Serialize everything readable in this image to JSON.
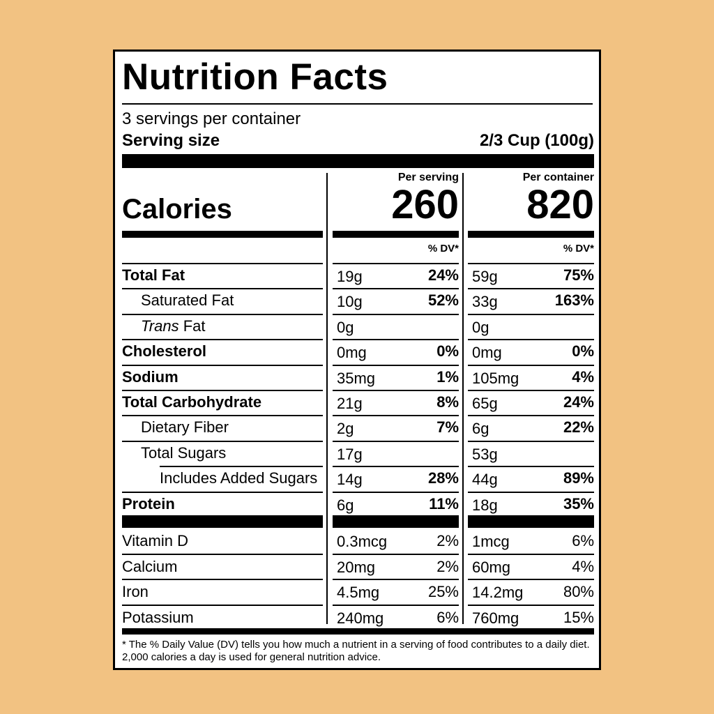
{
  "title": "Nutrition Facts",
  "servings_per_container": "3 servings per container",
  "serving_size_label": "Serving size",
  "serving_size_value": "2/3 Cup (100g)",
  "calories_label": "Calories",
  "per_serving_label": "Per serving",
  "per_container_label": "Per container",
  "calories_per_serving": "260",
  "calories_per_container": "820",
  "dv_header": "% DV*",
  "nutrients": [
    {
      "name": "Total Fat",
      "serving_amt": "19g",
      "serving_dv": "24%",
      "container_amt": "59g",
      "container_dv": "75%"
    },
    {
      "name": "Saturated Fat",
      "serving_amt": "10g",
      "serving_dv": "52%",
      "container_amt": "33g",
      "container_dv": "163%"
    },
    {
      "name_italic": "Trans",
      "name": "Fat",
      "serving_amt": "0g",
      "serving_dv": "",
      "container_amt": "0g",
      "container_dv": ""
    },
    {
      "name": "Cholesterol",
      "serving_amt": "0mg",
      "serving_dv": "0%",
      "container_amt": "0mg",
      "container_dv": "0%"
    },
    {
      "name": "Sodium",
      "serving_amt": "35mg",
      "serving_dv": "1%",
      "container_amt": "105mg",
      "container_dv": "4%"
    },
    {
      "name": "Total Carbohydrate",
      "serving_amt": "21g",
      "serving_dv": "8%",
      "container_amt": "65g",
      "container_dv": "24%"
    },
    {
      "name": "Dietary Fiber",
      "serving_amt": "2g",
      "serving_dv": "7%",
      "container_amt": "6g",
      "container_dv": "22%"
    },
    {
      "name": "Total Sugars",
      "serving_amt": "17g",
      "serving_dv": "",
      "container_amt": "53g",
      "container_dv": ""
    },
    {
      "name": "Includes Added Sugars",
      "serving_amt": "14g",
      "serving_dv": "28%",
      "container_amt": "44g",
      "container_dv": "89%"
    },
    {
      "name": "Protein",
      "serving_amt": "6g",
      "serving_dv": "11%",
      "container_amt": "18g",
      "container_dv": "35%"
    }
  ],
  "vitamins": [
    {
      "name": "Vitamin D",
      "serving_amt": "0.3mcg",
      "serving_dv": "2%",
      "container_amt": "1mcg",
      "container_dv": "6%"
    },
    {
      "name": "Calcium",
      "serving_amt": "20mg",
      "serving_dv": "2%",
      "container_amt": "60mg",
      "container_dv": "4%"
    },
    {
      "name": "Iron",
      "serving_amt": "4.5mg",
      "serving_dv": "25%",
      "container_amt": "14.2mg",
      "container_dv": "80%"
    },
    {
      "name": "Potassium",
      "serving_amt": "240mg",
      "serving_dv": "6%",
      "container_amt": "760mg",
      "container_dv": "15%"
    }
  ],
  "footnote": "* The % Daily Value (DV) tells you how much a nutrient in a serving of food contributes to a daily diet. 2,000 calories a day is used for general nutrition advice.",
  "colors": {
    "background": "#f2c282",
    "label": "#ffffff",
    "ink": "#000000"
  }
}
